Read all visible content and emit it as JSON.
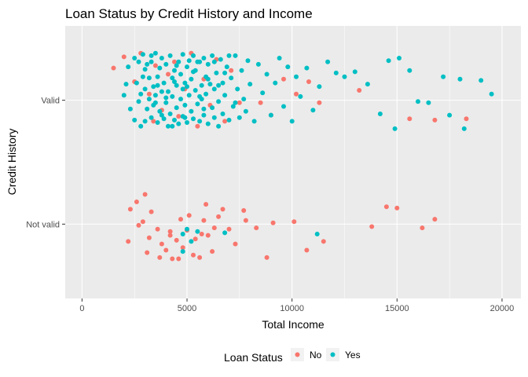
{
  "colors": {
    "No": "#F8766D",
    "Yes": "#00BFC4",
    "panel": "#EBEBEB",
    "grid": "#FFFFFF"
  },
  "chart_data": {
    "type": "scatter",
    "title": "Loan Status by Credit History and Income",
    "xlabel": "Total Income",
    "ylabel": "Credit History",
    "xlim": [
      -800,
      20900
    ],
    "x_ticks": [
      0,
      5000,
      10000,
      15000,
      20000
    ],
    "x_tick_labels": [
      "0",
      "5000",
      "10000",
      "15000",
      "20000"
    ],
    "categories": [
      "Not valid",
      "Valid"
    ],
    "ylim": [
      0.4,
      2.6
    ],
    "grid": true,
    "legend": {
      "title": "Loan Status",
      "position": "bottom",
      "entries": [
        "No",
        "Yes"
      ]
    },
    "series": [
      {
        "name": "No",
        "points": [
          [
            1500,
            2.26
          ],
          [
            2000,
            2.35
          ],
          [
            2500,
            2.15
          ],
          [
            2800,
            2.38
          ],
          [
            3200,
            2.05
          ],
          [
            3400,
            1.83
          ],
          [
            3500,
            2.28
          ],
          [
            3800,
            1.92
          ],
          [
            4100,
            2.21
          ],
          [
            4400,
            2.31
          ],
          [
            4600,
            1.87
          ],
          [
            4900,
            2.09
          ],
          [
            5200,
            2.38
          ],
          [
            5500,
            1.79
          ],
          [
            5800,
            2.17
          ],
          [
            6100,
            1.96
          ],
          [
            6400,
            2.33
          ],
          [
            6800,
            1.83
          ],
          [
            7100,
            2.24
          ],
          [
            7500,
            1.98
          ],
          [
            8500,
            1.98
          ],
          [
            9000,
            1.88
          ],
          [
            9600,
            2.17
          ],
          [
            10200,
            2.05
          ],
          [
            10800,
            2.15
          ],
          [
            11300,
            1.98
          ],
          [
            13200,
            2.08
          ],
          [
            15600,
            1.85
          ],
          [
            16800,
            1.84
          ],
          [
            18300,
            1.85
          ],
          [
            2300,
            1.12
          ],
          [
            2600,
            1.18
          ],
          [
            2700,
            0.99
          ],
          [
            2900,
            1.02
          ],
          [
            3100,
            0.77
          ],
          [
            3300,
            1.1
          ],
          [
            3600,
            0.96
          ],
          [
            3800,
            0.84
          ],
          [
            4000,
            0.79
          ],
          [
            4200,
            0.91
          ],
          [
            4300,
            0.72
          ],
          [
            4500,
            0.87
          ],
          [
            4700,
            1.04
          ],
          [
            4800,
            0.81
          ],
          [
            5000,
            0.95
          ],
          [
            5100,
            1.07
          ],
          [
            5300,
            0.75
          ],
          [
            5400,
            0.88
          ],
          [
            5600,
            0.73
          ],
          [
            5800,
            1.03
          ],
          [
            6000,
            0.91
          ],
          [
            6200,
            0.78
          ],
          [
            6500,
            1.06
          ],
          [
            6700,
            1.12
          ],
          [
            7000,
            0.96
          ],
          [
            7300,
            0.84
          ],
          [
            7800,
            1.03
          ],
          [
            8300,
            0.97
          ],
          [
            8800,
            0.73
          ],
          [
            9100,
            1.01
          ],
          [
            10100,
            1.02
          ],
          [
            10700,
            0.79
          ],
          [
            11500,
            0.86
          ],
          [
            13800,
            0.98
          ],
          [
            14500,
            1.14
          ],
          [
            15000,
            1.13
          ],
          [
            16200,
            0.97
          ],
          [
            16800,
            1.04
          ],
          [
            2200,
            0.86
          ],
          [
            3000,
            1.24
          ],
          [
            3700,
            0.73
          ],
          [
            4200,
            0.94
          ],
          [
            4600,
            0.72
          ],
          [
            5900,
            1.16
          ],
          [
            6300,
            0.97
          ],
          [
            7700,
            1.11
          ],
          [
            3200,
            0.89
          ],
          [
            5700,
            0.92
          ]
        ]
      },
      {
        "name": "Yes",
        "points": [
          [
            2000,
            2.04
          ],
          [
            2100,
            2.13
          ],
          [
            2200,
            2.27
          ],
          [
            2300,
            1.93
          ],
          [
            2500,
            2.34
          ],
          [
            2500,
            1.84
          ],
          [
            2600,
            2.14
          ],
          [
            2700,
            2.31
          ],
          [
            2700,
            1.99
          ],
          [
            2800,
            1.79
          ],
          [
            2900,
            2.19
          ],
          [
            2900,
            2.37
          ],
          [
            3000,
            1.83
          ],
          [
            3000,
            2.09
          ],
          [
            3100,
            2.29
          ],
          [
            3100,
            1.93
          ],
          [
            3200,
            2.18
          ],
          [
            3200,
            2.01
          ],
          [
            3300,
            1.86
          ],
          [
            3300,
            2.31
          ],
          [
            3400,
            2.11
          ],
          [
            3400,
            1.96
          ],
          [
            3500,
            2.38
          ],
          [
            3500,
            2.04
          ],
          [
            3600,
            1.82
          ],
          [
            3600,
            2.19
          ],
          [
            3700,
            2.26
          ],
          [
            3700,
            1.91
          ],
          [
            3800,
            2.07
          ],
          [
            3800,
            2.34
          ],
          [
            3900,
            1.85
          ],
          [
            3900,
            2.14
          ],
          [
            4000,
            2.29
          ],
          [
            4000,
            1.98
          ],
          [
            4100,
            1.79
          ],
          [
            4100,
            2.07
          ],
          [
            4200,
            2.36
          ],
          [
            4200,
            1.89
          ],
          [
            4300,
            2.18
          ],
          [
            4300,
            2.03
          ],
          [
            4400,
            1.84
          ],
          [
            4400,
            2.24
          ],
          [
            4500,
            2.12
          ],
          [
            4500,
            1.94
          ],
          [
            4600,
            2.31
          ],
          [
            4600,
            1.81
          ],
          [
            4700,
            2.01
          ],
          [
            4700,
            2.21
          ],
          [
            4800,
            1.87
          ],
          [
            4800,
            2.37
          ],
          [
            4900,
            2.14
          ],
          [
            4900,
            1.96
          ],
          [
            5000,
            2.27
          ],
          [
            5000,
            1.82
          ],
          [
            5100,
            2.04
          ],
          [
            5100,
            2.32
          ],
          [
            5200,
            1.91
          ],
          [
            5200,
            2.17
          ],
          [
            5300,
            2.36
          ],
          [
            5300,
            1.85
          ],
          [
            5400,
            2.08
          ],
          [
            5400,
            2.24
          ],
          [
            5500,
            1.97
          ],
          [
            5600,
            2.31
          ],
          [
            5600,
            1.83
          ],
          [
            5700,
            2.12
          ],
          [
            5700,
            2.01
          ],
          [
            5800,
            2.34
          ],
          [
            5800,
            1.88
          ],
          [
            5900,
            2.19
          ],
          [
            5900,
            2.05
          ],
          [
            6000,
            1.81
          ],
          [
            6000,
            2.29
          ],
          [
            6100,
            2.13
          ],
          [
            6200,
            1.94
          ],
          [
            6200,
            2.36
          ],
          [
            6300,
            1.86
          ],
          [
            6300,
            2.09
          ],
          [
            6400,
            2.22
          ],
          [
            6500,
            1.99
          ],
          [
            6500,
            1.79
          ],
          [
            6600,
            2.33
          ],
          [
            6700,
            2.14
          ],
          [
            6700,
            1.89
          ],
          [
            6800,
            2.04
          ],
          [
            6900,
            2.27
          ],
          [
            7000,
            1.84
          ],
          [
            7100,
            2.18
          ],
          [
            7200,
            1.95
          ],
          [
            7300,
            2.36
          ],
          [
            7400,
            2.09
          ],
          [
            7500,
            1.86
          ],
          [
            7600,
            2.24
          ],
          [
            7700,
            2.01
          ],
          [
            7800,
            1.91
          ],
          [
            7900,
            2.32
          ],
          [
            8000,
            2.13
          ],
          [
            8200,
            1.83
          ],
          [
            8400,
            2.29
          ],
          [
            8600,
            2.06
          ],
          [
            8800,
            2.21
          ],
          [
            9000,
            1.88
          ],
          [
            9200,
            2.14
          ],
          [
            9400,
            2.34
          ],
          [
            9600,
            1.95
          ],
          [
            9800,
            2.27
          ],
          [
            10000,
            1.83
          ],
          [
            10200,
            2.19
          ],
          [
            10400,
            2.03
          ],
          [
            10700,
            2.26
          ],
          [
            11000,
            1.92
          ],
          [
            11300,
            2.11
          ],
          [
            11700,
            2.31
          ],
          [
            12100,
            2.22
          ],
          [
            12500,
            2.19
          ],
          [
            13000,
            2.23
          ],
          [
            13600,
            2.13
          ],
          [
            14200,
            1.89
          ],
          [
            14600,
            2.32
          ],
          [
            14900,
            1.77
          ],
          [
            15100,
            2.34
          ],
          [
            15600,
            2.24
          ],
          [
            16000,
            1.99
          ],
          [
            16500,
            1.98
          ],
          [
            17200,
            2.19
          ],
          [
            17500,
            1.88
          ],
          [
            18000,
            2.17
          ],
          [
            18200,
            1.77
          ],
          [
            19000,
            2.16
          ],
          [
            19500,
            2.05
          ],
          [
            3000,
            2.25
          ],
          [
            4000,
            2.02
          ],
          [
            5000,
            2.11
          ],
          [
            6000,
            2.17
          ],
          [
            7000,
            2.36
          ],
          [
            4500,
            2.28
          ],
          [
            3500,
            1.98
          ],
          [
            5500,
            2.31
          ],
          [
            6500,
            2.12
          ],
          [
            2800,
            2.05
          ],
          [
            3800,
            1.88
          ],
          [
            4800,
            2.09
          ],
          [
            5800,
            1.93
          ],
          [
            6800,
            2.22
          ],
          [
            3300,
            2.36
          ],
          [
            4300,
            1.79
          ],
          [
            5300,
            2.23
          ],
          [
            6300,
            2.31
          ],
          [
            7300,
            1.98
          ],
          [
            3600,
            2.12
          ],
          [
            4900,
            1.86
          ],
          [
            5600,
            2.03
          ],
          [
            4400,
            2.15
          ],
          [
            4800,
            0.92
          ],
          [
            5000,
            0.96
          ],
          [
            5500,
            0.94
          ],
          [
            5200,
            0.86
          ],
          [
            6800,
            0.93
          ],
          [
            11200,
            0.92
          ],
          [
            4800,
            0.78
          ]
        ]
      }
    ]
  }
}
